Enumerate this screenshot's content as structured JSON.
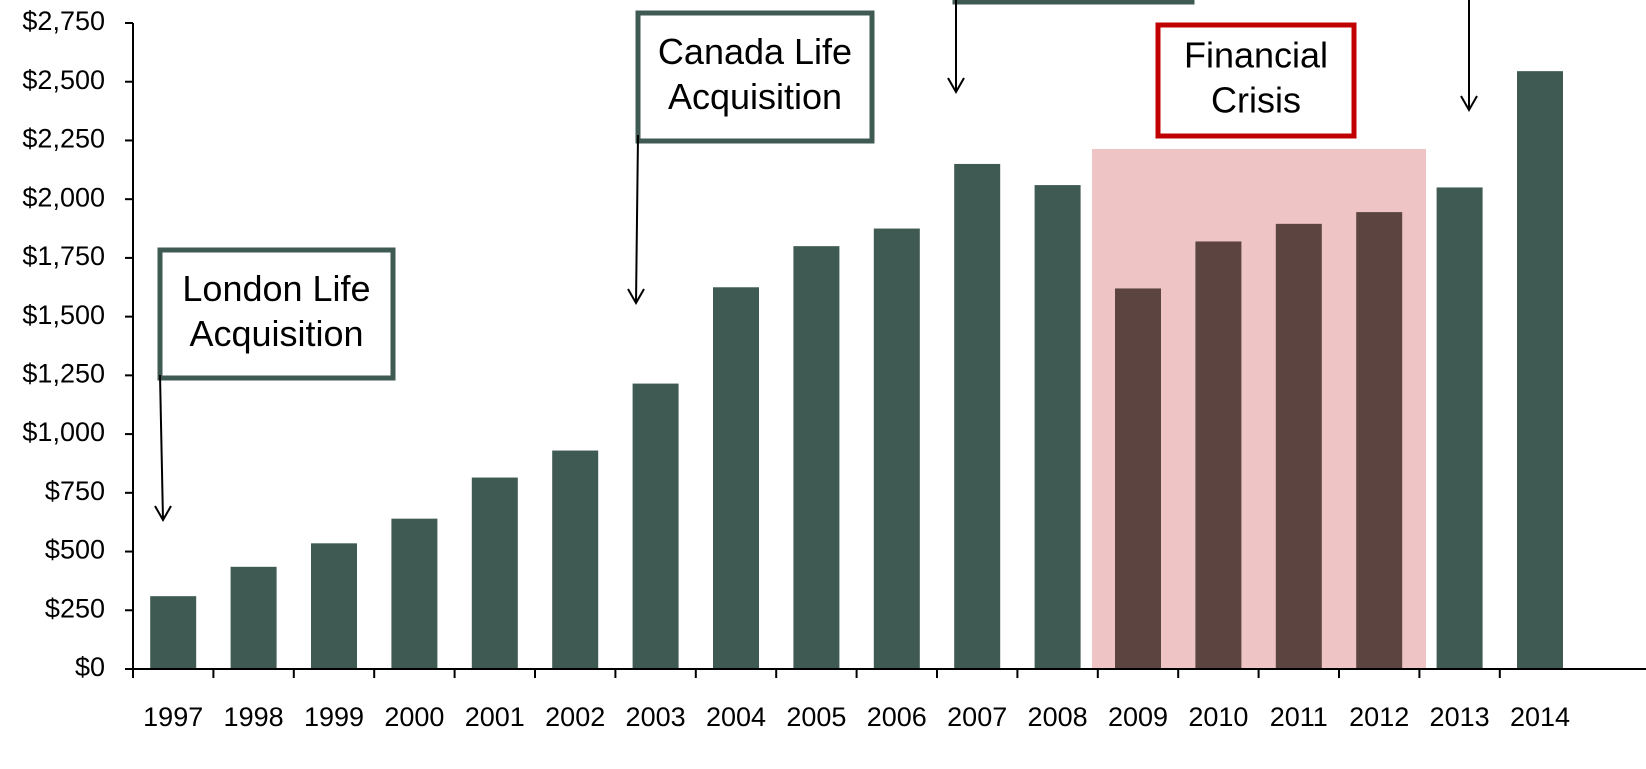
{
  "chart_data": {
    "type": "bar",
    "categories": [
      "1997",
      "1998",
      "1999",
      "2000",
      "2001",
      "2002",
      "2003",
      "2004",
      "2005",
      "2006",
      "2007",
      "2008",
      "2009",
      "2010",
      "2011",
      "2012",
      "2013",
      "2014"
    ],
    "values": [
      310,
      435,
      535,
      640,
      815,
      930,
      1215,
      1625,
      1800,
      1875,
      2150,
      2060,
      1620,
      1820,
      1895,
      1945,
      2050,
      2545
    ],
    "colors": [
      "#3f5a53",
      "#3f5a53",
      "#3f5a53",
      "#3f5a53",
      "#3f5a53",
      "#3f5a53",
      "#3f5a53",
      "#3f5a53",
      "#3f5a53",
      "#3f5a53",
      "#3f5a53",
      "#3f5a53",
      "#5c4541",
      "#5c4541",
      "#5c4541",
      "#5c4541",
      "#3f5a53",
      "#3f5a53"
    ],
    "ylim": [
      0,
      2750
    ],
    "yticks": [
      {
        "value": 0,
        "label": "$0"
      },
      {
        "value": 250,
        "label": "$250"
      },
      {
        "value": 500,
        "label": "$500"
      },
      {
        "value": 750,
        "label": "$750"
      },
      {
        "value": 1000,
        "label": "$1,000"
      },
      {
        "value": 1250,
        "label": "$1,250"
      },
      {
        "value": 1500,
        "label": "$1,500"
      },
      {
        "value": 1750,
        "label": "$1,750"
      },
      {
        "value": 2000,
        "label": "$2,000"
      },
      {
        "value": 2250,
        "label": "$2,250"
      },
      {
        "value": 2500,
        "label": "$2,500"
      },
      {
        "value": 2750,
        "label": "$2,750"
      }
    ],
    "annotations": [
      {
        "text": [
          "London Life",
          "Acquisition"
        ]
      },
      {
        "text": [
          "Canada Life",
          "Acquisition"
        ]
      },
      {
        "text": [
          "Financial",
          "Crisis"
        ]
      }
    ]
  }
}
